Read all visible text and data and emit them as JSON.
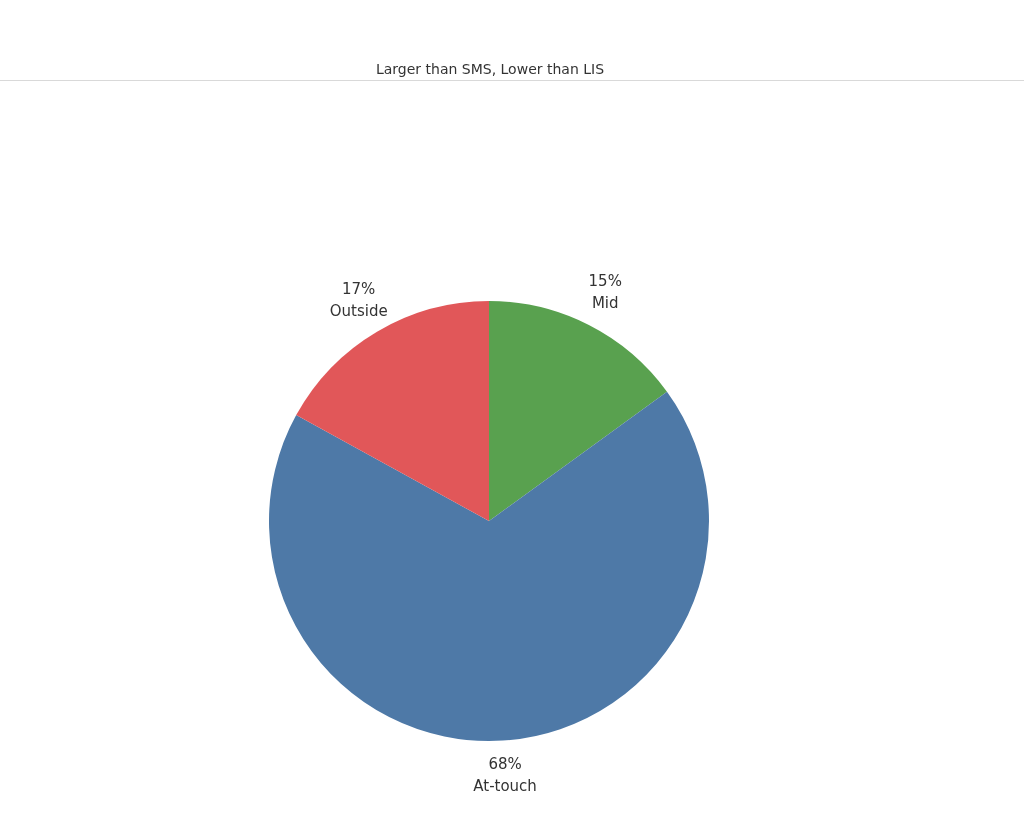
{
  "chart_data": {
    "type": "pie",
    "title": "Larger than SMS, Lower than LIS",
    "categories": [
      "Mid",
      "At-touch",
      "Outside"
    ],
    "values": [
      15,
      68,
      17
    ],
    "value_labels": [
      "15%",
      "68%",
      "17%"
    ],
    "colors": [
      "#59a14f",
      "#4e79a7",
      "#e15759"
    ],
    "legend": false
  }
}
